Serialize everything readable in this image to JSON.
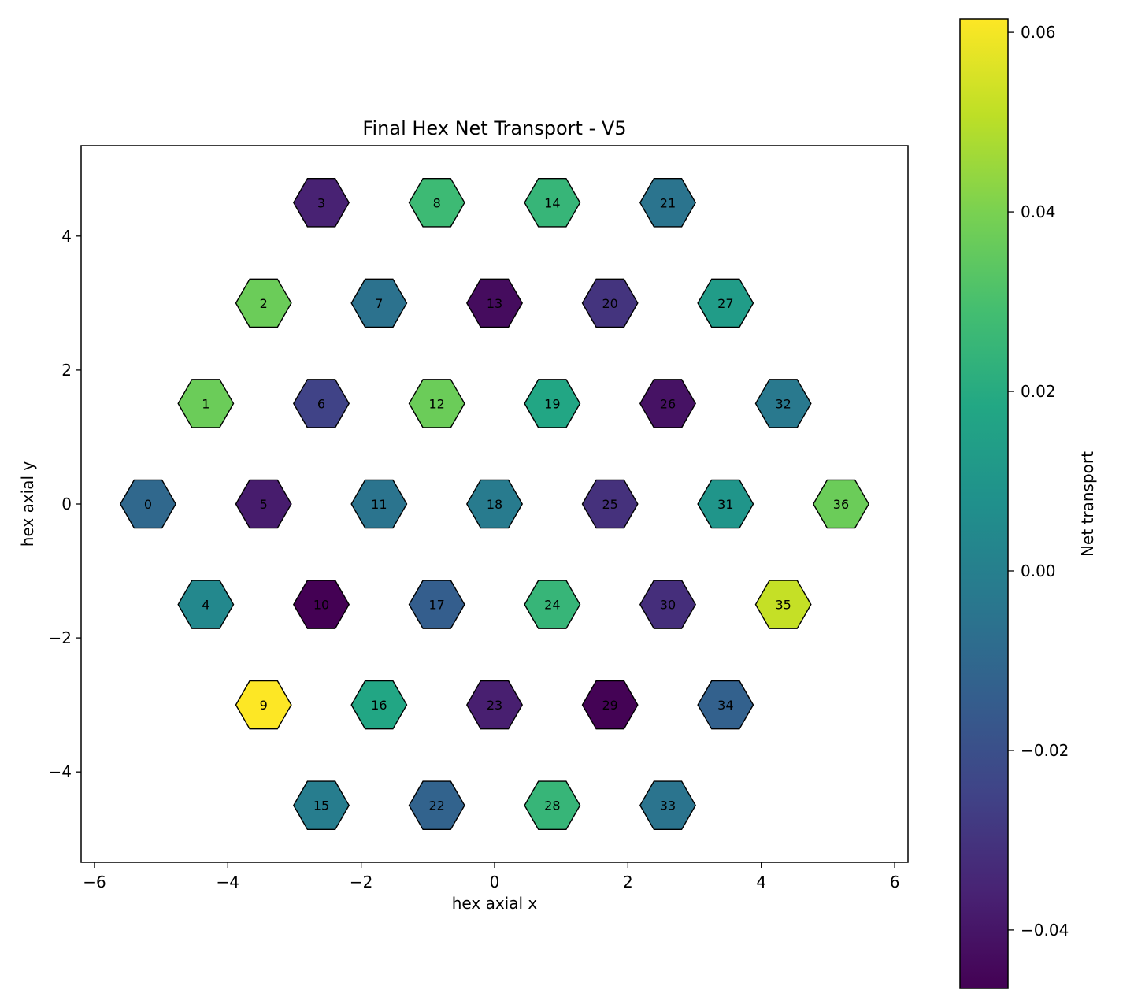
{
  "chart_data": {
    "type": "hexbin",
    "title": "Final Hex Net Transport - V5",
    "xlabel": "hex axial x",
    "ylabel": "hex axial y",
    "xlim": [
      -6.2,
      6.2
    ],
    "ylim": [
      -5.35,
      5.35
    ],
    "xticks": [
      -6,
      -4,
      -2,
      0,
      2,
      4,
      6
    ],
    "xtick_labels": [
      "−6",
      "−4",
      "−2",
      "0",
      "2",
      "4",
      "6"
    ],
    "yticks": [
      -4,
      -2,
      0,
      2,
      4
    ],
    "ytick_labels": [
      "−4",
      "−2",
      "0",
      "2",
      "4"
    ],
    "grid": false,
    "colormap": "viridis",
    "colorbar": {
      "label": "Net transport",
      "vmin": -0.0465,
      "vmax": 0.0615,
      "ticks": [
        -0.04,
        -0.02,
        0.0,
        0.02,
        0.04,
        0.06
      ],
      "tick_labels": [
        "−0.04",
        "−0.02",
        "0.00",
        "0.02",
        "0.04",
        "0.06"
      ]
    },
    "cells": [
      {
        "id": "0",
        "x": -5.196,
        "y": 0,
        "value": -0.01
      },
      {
        "id": "1",
        "x": -4.33,
        "y": 1.5,
        "value": 0.037
      },
      {
        "id": "2",
        "x": -3.464,
        "y": 3.0,
        "value": 0.037
      },
      {
        "id": "3",
        "x": -2.598,
        "y": 4.5,
        "value": -0.036
      },
      {
        "id": "4",
        "x": -4.33,
        "y": -1.5,
        "value": 0.004
      },
      {
        "id": "5",
        "x": -3.464,
        "y": 0,
        "value": -0.038
      },
      {
        "id": "6",
        "x": -2.598,
        "y": 1.5,
        "value": -0.025
      },
      {
        "id": "7",
        "x": -1.732,
        "y": 3.0,
        "value": -0.006
      },
      {
        "id": "8",
        "x": -0.866,
        "y": 4.5,
        "value": 0.027
      },
      {
        "id": "9",
        "x": -3.464,
        "y": -3.0,
        "value": 0.0615
      },
      {
        "id": "10",
        "x": -2.598,
        "y": -1.5,
        "value": -0.0465
      },
      {
        "id": "11",
        "x": -1.732,
        "y": 0,
        "value": -0.005
      },
      {
        "id": "12",
        "x": -0.866,
        "y": 1.5,
        "value": 0.037
      },
      {
        "id": "13",
        "x": 0,
        "y": 3.0,
        "value": -0.043
      },
      {
        "id": "14",
        "x": 0.866,
        "y": 4.5,
        "value": 0.025
      },
      {
        "id": "15",
        "x": -2.598,
        "y": -4.5,
        "value": -0.001
      },
      {
        "id": "16",
        "x": -1.732,
        "y": -3.0,
        "value": 0.018
      },
      {
        "id": "17",
        "x": -0.866,
        "y": -1.5,
        "value": -0.014
      },
      {
        "id": "18",
        "x": 0,
        "y": 0,
        "value": -0.002
      },
      {
        "id": "19",
        "x": 0.866,
        "y": 1.5,
        "value": 0.018
      },
      {
        "id": "20",
        "x": 1.732,
        "y": 3.0,
        "value": -0.03
      },
      {
        "id": "21",
        "x": 2.598,
        "y": 4.5,
        "value": -0.005
      },
      {
        "id": "22",
        "x": -0.866,
        "y": -4.5,
        "value": -0.012
      },
      {
        "id": "23",
        "x": 0,
        "y": -3.0,
        "value": -0.037
      },
      {
        "id": "24",
        "x": 0.866,
        "y": -1.5,
        "value": 0.025
      },
      {
        "id": "25",
        "x": 1.732,
        "y": 0,
        "value": -0.031
      },
      {
        "id": "26",
        "x": 2.598,
        "y": 1.5,
        "value": -0.041
      },
      {
        "id": "27",
        "x": 3.464,
        "y": 3.0,
        "value": 0.013
      },
      {
        "id": "28",
        "x": 0.866,
        "y": -4.5,
        "value": 0.025
      },
      {
        "id": "29",
        "x": 1.732,
        "y": -3.0,
        "value": -0.046
      },
      {
        "id": "30",
        "x": 2.598,
        "y": -1.5,
        "value": -0.032
      },
      {
        "id": "31",
        "x": 3.464,
        "y": 0,
        "value": 0.01
      },
      {
        "id": "32",
        "x": 4.33,
        "y": 1.5,
        "value": -0.003
      },
      {
        "id": "33",
        "x": 2.598,
        "y": -4.5,
        "value": -0.005
      },
      {
        "id": "34",
        "x": 3.464,
        "y": -3.0,
        "value": -0.013
      },
      {
        "id": "35",
        "x": 4.33,
        "y": -1.5,
        "value": 0.052
      },
      {
        "id": "36",
        "x": 5.196,
        "y": 0,
        "value": 0.037
      }
    ]
  }
}
